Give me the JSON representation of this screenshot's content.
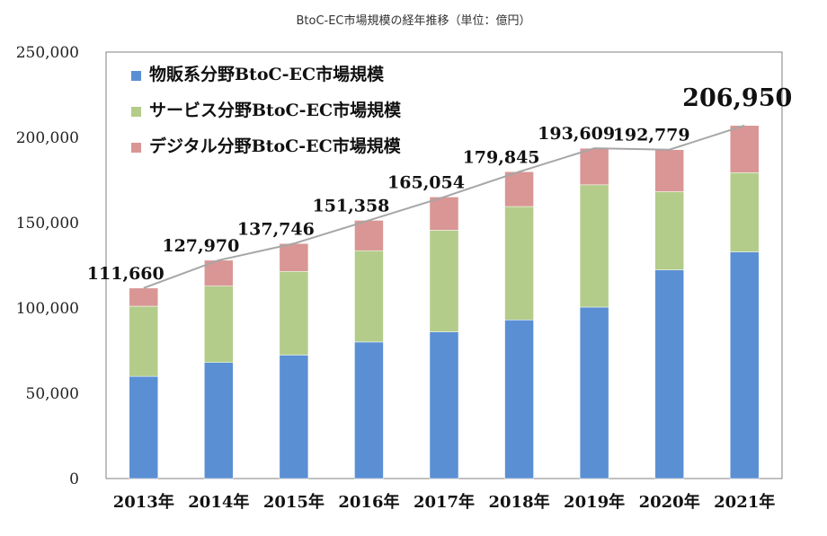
{
  "chart_data": {
    "type": "bar",
    "stacked": true,
    "title": "BtoC-EC市場規模の経年推移（単位：億円）",
    "categories": [
      "2013年",
      "2014年",
      "2015年",
      "2016年",
      "2017年",
      "2018年",
      "2019年",
      "2020年",
      "2021年"
    ],
    "series": [
      {
        "name": "物販系分野BtoC-EC市場規模",
        "color": "#5b8fd4",
        "values": [
          59931,
          68043,
          72398,
          80043,
          86008,
          92992,
          100515,
          122333,
          132865
        ]
      },
      {
        "name": "サービス分野BtoC-EC市場規模",
        "color": "#b3cc8a",
        "values": [
          41106,
          44816,
          49014,
          53532,
          59568,
          66471,
          71672,
          45832,
          46424
        ]
      },
      {
        "name": "デジタル分野BtoC-EC市場規模",
        "color": "#d99694",
        "values": [
          10623,
          15111,
          16334,
          17782,
          19478,
          20382,
          21422,
          24614,
          27661
        ]
      }
    ],
    "totals": [
      111660,
      127970,
      137746,
      151358,
      165054,
      179845,
      193609,
      192779,
      206950
    ],
    "total_labels": [
      "111,660",
      "127,970",
      "137,746",
      "151,358",
      "165,054",
      "179,845",
      "193,609",
      "192,779",
      "206,950"
    ],
    "ylim": [
      0,
      250000
    ],
    "yticks": [
      0,
      50000,
      100000,
      150000,
      200000,
      250000
    ],
    "ytick_labels": [
      "0",
      "50,000",
      "100,000",
      "150,000",
      "200,000",
      "250,000"
    ],
    "legend_position": "top-left",
    "grid": false,
    "total_line_color": "#a6a6a6"
  }
}
